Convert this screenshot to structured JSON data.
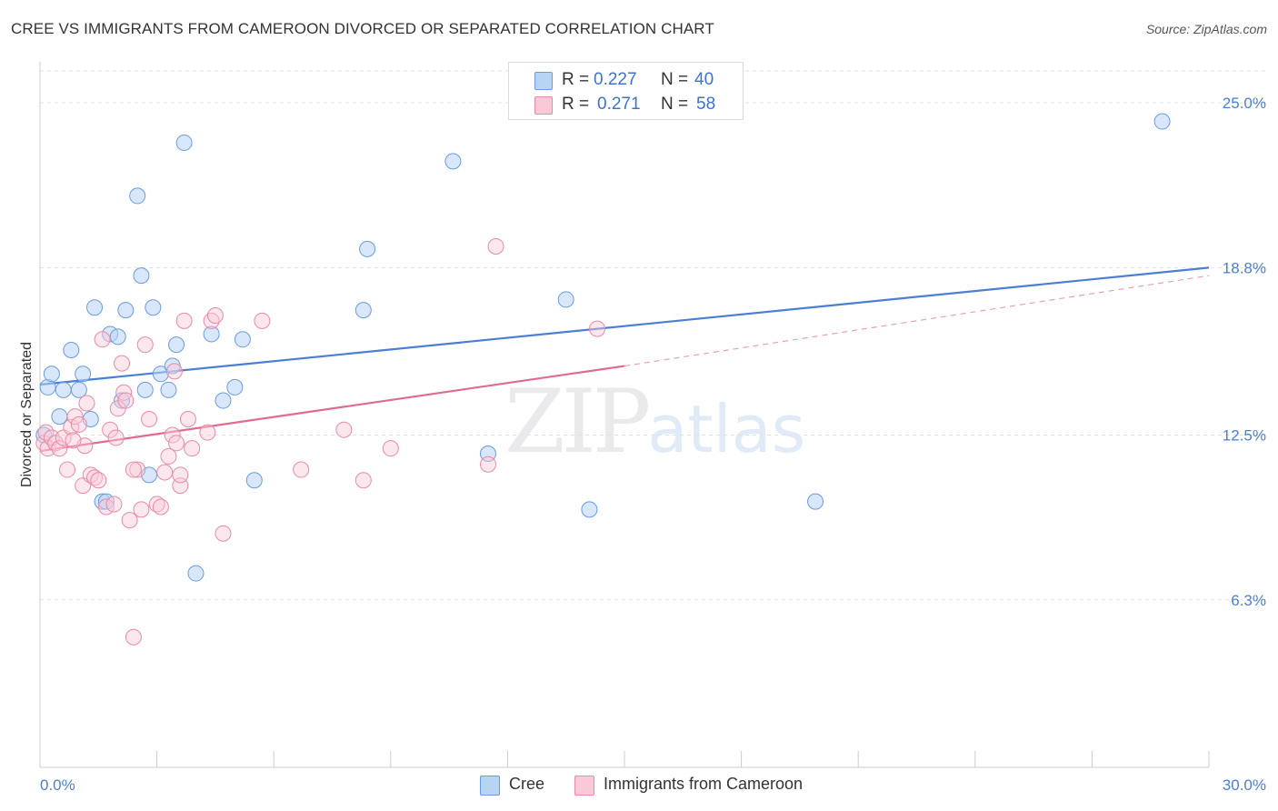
{
  "title": "CREE VS IMMIGRANTS FROM CAMEROON DIVORCED OR SEPARATED CORRELATION CHART",
  "source": "Source: ZipAtlas.com",
  "watermark": {
    "zip": "ZIP",
    "atlas": "atlas"
  },
  "legend": {
    "r_label": "R =",
    "n_label": "N =",
    "series": [
      {
        "name": "Cree",
        "r": "0.227",
        "n": "40",
        "fill": "#b8d4f5",
        "stroke": "#6a9be0"
      },
      {
        "name": "Immigrants from Cameroon",
        "r": "0.271",
        "n": "58",
        "fill": "#f9c9d8",
        "stroke": "#e88aa8"
      }
    ]
  },
  "chart_data": {
    "type": "scatter",
    "title": "CREE VS IMMIGRANTS FROM CAMEROON DIVORCED OR SEPARATED CORRELATION CHART",
    "xlabel": "",
    "ylabel": "Divorced or Separated",
    "xlim": [
      0,
      30
    ],
    "ylim": [
      0,
      26.2
    ],
    "x_tick_labels": [
      "0.0%",
      "30.0%"
    ],
    "y_ticks": [
      6.3,
      12.5,
      18.8,
      25.0
    ],
    "y_tick_labels": [
      "6.3%",
      "12.5%",
      "18.8%",
      "25.0%"
    ],
    "grid": true,
    "legend_position": "top-center",
    "series": [
      {
        "name": "Cree",
        "color": "#4a7fd4",
        "trend": {
          "x": [
            0,
            30
          ],
          "y": [
            14.4,
            18.8
          ],
          "dashed_from": null
        },
        "points": [
          [
            0.1,
            12.5
          ],
          [
            0.2,
            14.3
          ],
          [
            0.3,
            14.8
          ],
          [
            0.5,
            13.2
          ],
          [
            0.6,
            14.2
          ],
          [
            0.8,
            15.7
          ],
          [
            1.0,
            14.2
          ],
          [
            1.1,
            14.8
          ],
          [
            1.3,
            13.1
          ],
          [
            1.4,
            17.3
          ],
          [
            1.6,
            10.0
          ],
          [
            1.7,
            10.0
          ],
          [
            1.8,
            16.3
          ],
          [
            2.0,
            16.2
          ],
          [
            2.1,
            13.8
          ],
          [
            2.2,
            17.2
          ],
          [
            2.5,
            21.5
          ],
          [
            2.6,
            18.5
          ],
          [
            2.7,
            14.2
          ],
          [
            2.8,
            11.0
          ],
          [
            2.9,
            17.3
          ],
          [
            3.1,
            14.8
          ],
          [
            3.3,
            14.2
          ],
          [
            3.4,
            15.1
          ],
          [
            3.5,
            15.9
          ],
          [
            3.7,
            23.5
          ],
          [
            4.0,
            7.3
          ],
          [
            4.4,
            16.3
          ],
          [
            4.7,
            13.8
          ],
          [
            5.0,
            14.3
          ],
          [
            5.2,
            16.1
          ],
          [
            5.5,
            10.8
          ],
          [
            8.3,
            17.2
          ],
          [
            8.4,
            19.5
          ],
          [
            10.6,
            22.8
          ],
          [
            11.5,
            11.8
          ],
          [
            13.5,
            17.6
          ],
          [
            14.1,
            9.7
          ],
          [
            19.9,
            10.0
          ],
          [
            28.8,
            24.3
          ]
        ]
      },
      {
        "name": "Immigrants from Cameroon",
        "color": "#e06a92",
        "trend": {
          "x": [
            0,
            15
          ],
          "y": [
            11.9,
            15.1
          ],
          "dashed_to": [
            30,
            18.5
          ]
        },
        "points": [
          [
            0.1,
            12.2
          ],
          [
            0.15,
            12.6
          ],
          [
            0.2,
            12.0
          ],
          [
            0.3,
            12.4
          ],
          [
            0.4,
            12.2
          ],
          [
            0.5,
            12.0
          ],
          [
            0.6,
            12.4
          ],
          [
            0.7,
            11.2
          ],
          [
            0.8,
            12.8
          ],
          [
            0.9,
            13.2
          ],
          [
            1.0,
            12.9
          ],
          [
            1.1,
            10.6
          ],
          [
            1.2,
            13.7
          ],
          [
            1.3,
            11.0
          ],
          [
            1.4,
            10.9
          ],
          [
            1.5,
            10.8
          ],
          [
            1.6,
            16.1
          ],
          [
            1.7,
            9.8
          ],
          [
            1.8,
            12.7
          ],
          [
            1.9,
            9.9
          ],
          [
            1.95,
            12.4
          ],
          [
            2.0,
            13.5
          ],
          [
            2.1,
            15.2
          ],
          [
            2.15,
            14.1
          ],
          [
            2.2,
            13.8
          ],
          [
            2.3,
            9.3
          ],
          [
            2.4,
            4.9
          ],
          [
            2.5,
            11.2
          ],
          [
            2.6,
            9.7
          ],
          [
            2.7,
            15.9
          ],
          [
            2.8,
            13.1
          ],
          [
            3.0,
            9.9
          ],
          [
            3.1,
            9.8
          ],
          [
            3.2,
            11.1
          ],
          [
            3.3,
            11.7
          ],
          [
            3.4,
            12.5
          ],
          [
            3.5,
            12.2
          ],
          [
            3.6,
            10.6
          ],
          [
            3.7,
            16.8
          ],
          [
            3.8,
            13.1
          ],
          [
            3.9,
            12.0
          ],
          [
            4.3,
            12.6
          ],
          [
            4.4,
            16.8
          ],
          [
            4.5,
            17.0
          ],
          [
            4.7,
            8.8
          ],
          [
            5.7,
            16.8
          ],
          [
            6.7,
            11.2
          ],
          [
            7.8,
            12.7
          ],
          [
            8.3,
            10.8
          ],
          [
            9.0,
            12.0
          ],
          [
            11.5,
            11.4
          ],
          [
            11.7,
            19.6
          ],
          [
            14.3,
            16.5
          ],
          [
            3.6,
            11.0
          ],
          [
            2.4,
            11.2
          ],
          [
            3.45,
            14.9
          ],
          [
            1.15,
            12.1
          ],
          [
            0.85,
            12.3
          ]
        ]
      }
    ]
  }
}
